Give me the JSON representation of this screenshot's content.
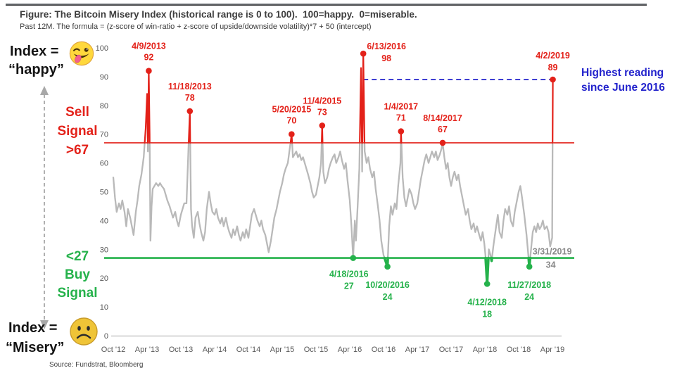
{
  "header": {
    "title": "Figure: The Bitcoin Misery Index (historical range is 0 to 100).  100=happy.  0=miserable.",
    "subtitle": "Past 12M. The formula = (z-score of win-ratio + z-score of upside/downside volatility)*7 + 50 (intercept)",
    "source": "Source: Fundstrat, Bloomberg"
  },
  "left_labels": {
    "happy_line1": "Index =",
    "happy_line2": "“happy”",
    "misery_line1": "Index =",
    "misery_line2": "“Misery”",
    "sell": [
      "Sell",
      "Signal",
      ">67"
    ],
    "buy": [
      "<27",
      "Buy",
      "Signal"
    ]
  },
  "callout": {
    "line1": "Highest reading",
    "line2": "since June 2016"
  },
  "icons": {
    "happy": "winking-tongue-emoji",
    "misery": "sad-face-emoji",
    "range": "double-headed-dashed-arrow"
  },
  "colors": {
    "sell_red": "#e32119",
    "buy_green": "#25b24b",
    "series_gray": "#b9b9b9",
    "callout_blue": "#2323cc",
    "current_gray": "#8a8a8a",
    "axis_gray": "#595959"
  },
  "chart_data": {
    "type": "line",
    "title": "The Bitcoin Misery Index",
    "ylim": [
      0,
      100
    ],
    "grid": false,
    "y_ticks": [
      0,
      10,
      20,
      30,
      40,
      50,
      60,
      70,
      80,
      90,
      100
    ],
    "x_ticks": [
      "Oct '12",
      "Apr '13",
      "Oct '13",
      "Apr '14",
      "Oct '14",
      "Apr '15",
      "Oct '15",
      "Apr '16",
      "Oct '16",
      "Apr '17",
      "Oct '17",
      "Apr '18",
      "Oct '18",
      "Apr '19"
    ],
    "sell_threshold": 67,
    "buy_threshold": 27,
    "reference_line": {
      "value": 89,
      "from_m": 44.4,
      "to_m": 78.07,
      "style": "dashed"
    },
    "series": [
      {
        "name": "Bitcoin Misery Index (months since Oct 2012, index value)",
        "points": [
          [
            0,
            55
          ],
          [
            0.3,
            48
          ],
          [
            0.6,
            43
          ],
          [
            1,
            46
          ],
          [
            1.3,
            44
          ],
          [
            1.6,
            47
          ],
          [
            2,
            43
          ],
          [
            2.3,
            38
          ],
          [
            2.6,
            44
          ],
          [
            3,
            41
          ],
          [
            3.3,
            38
          ],
          [
            3.6,
            35
          ],
          [
            4,
            43
          ],
          [
            4.3,
            47
          ],
          [
            4.6,
            52
          ],
          [
            5,
            56
          ],
          [
            5.4,
            62
          ],
          [
            5.75,
            72
          ],
          [
            6,
            84
          ],
          [
            6.15,
            64
          ],
          [
            6.3,
            92
          ],
          [
            6.45,
            70
          ],
          [
            6.6,
            33
          ],
          [
            6.8,
            45
          ],
          [
            7,
            51
          ],
          [
            7.3,
            52
          ],
          [
            7.6,
            53
          ],
          [
            8,
            52
          ],
          [
            8.3,
            53
          ],
          [
            8.6,
            52
          ],
          [
            9,
            51
          ],
          [
            9.3,
            49
          ],
          [
            9.6,
            47
          ],
          [
            10,
            45
          ],
          [
            10.3,
            43
          ],
          [
            10.6,
            41
          ],
          [
            11,
            43
          ],
          [
            11.3,
            40
          ],
          [
            11.6,
            38
          ],
          [
            12,
            42
          ],
          [
            12.3,
            44
          ],
          [
            12.6,
            46
          ],
          [
            13,
            46
          ],
          [
            13.6,
            78
          ],
          [
            13.8,
            44
          ],
          [
            14,
            38
          ],
          [
            14.3,
            34
          ],
          [
            14.6,
            41
          ],
          [
            15,
            43
          ],
          [
            15.3,
            39
          ],
          [
            15.6,
            36
          ],
          [
            16,
            33
          ],
          [
            16.3,
            36
          ],
          [
            16.6,
            44
          ],
          [
            17,
            50
          ],
          [
            17.3,
            46
          ],
          [
            17.6,
            43
          ],
          [
            18,
            42
          ],
          [
            18.3,
            44
          ],
          [
            18.6,
            41
          ],
          [
            19,
            39
          ],
          [
            19.3,
            41
          ],
          [
            19.6,
            38
          ],
          [
            20,
            41
          ],
          [
            20.3,
            38
          ],
          [
            20.6,
            36
          ],
          [
            21,
            34
          ],
          [
            21.3,
            37
          ],
          [
            21.6,
            35
          ],
          [
            22,
            38
          ],
          [
            22.3,
            35
          ],
          [
            22.6,
            33
          ],
          [
            23,
            36
          ],
          [
            23.3,
            34
          ],
          [
            23.6,
            37
          ],
          [
            24,
            34
          ],
          [
            24.3,
            38
          ],
          [
            24.6,
            42
          ],
          [
            25,
            44
          ],
          [
            25.3,
            42
          ],
          [
            25.6,
            40
          ],
          [
            26,
            38
          ],
          [
            26.3,
            40
          ],
          [
            26.6,
            37
          ],
          [
            27,
            35
          ],
          [
            27.3,
            32
          ],
          [
            27.6,
            29
          ],
          [
            28,
            33
          ],
          [
            28.3,
            37
          ],
          [
            28.6,
            41
          ],
          [
            29,
            44
          ],
          [
            29.3,
            47
          ],
          [
            29.6,
            50
          ],
          [
            30,
            53
          ],
          [
            30.3,
            56
          ],
          [
            30.6,
            58
          ],
          [
            31,
            60
          ],
          [
            31.67,
            70
          ],
          [
            31.9,
            62
          ],
          [
            32.2,
            63
          ],
          [
            32.5,
            64
          ],
          [
            32.8,
            62
          ],
          [
            33.1,
            63
          ],
          [
            33.4,
            61
          ],
          [
            33.7,
            62
          ],
          [
            34,
            60
          ],
          [
            34.3,
            58
          ],
          [
            34.6,
            56
          ],
          [
            35,
            53
          ],
          [
            35.3,
            50
          ],
          [
            35.6,
            48
          ],
          [
            36,
            49
          ],
          [
            36.3,
            52
          ],
          [
            36.6,
            55
          ],
          [
            36.9,
            60
          ],
          [
            37.1,
            73
          ],
          [
            37.3,
            57
          ],
          [
            37.6,
            53
          ],
          [
            38,
            55
          ],
          [
            38.3,
            58
          ],
          [
            38.6,
            60
          ],
          [
            39,
            62
          ],
          [
            39.3,
            63
          ],
          [
            39.6,
            60
          ],
          [
            40,
            62
          ],
          [
            40.3,
            64
          ],
          [
            40.6,
            61
          ],
          [
            41,
            58
          ],
          [
            41.3,
            60
          ],
          [
            41.6,
            54
          ],
          [
            42,
            47
          ],
          [
            42.3,
            38
          ],
          [
            42.6,
            27
          ],
          [
            42.9,
            40
          ],
          [
            43.1,
            33
          ],
          [
            43.4,
            45
          ],
          [
            43.7,
            58
          ],
          [
            44,
            93
          ],
          [
            44.2,
            57
          ],
          [
            44.4,
            98
          ],
          [
            44.65,
            64
          ],
          [
            45,
            60
          ],
          [
            45.3,
            62
          ],
          [
            45.6,
            58
          ],
          [
            46,
            55
          ],
          [
            46.3,
            57
          ],
          [
            46.6,
            51
          ],
          [
            47,
            45
          ],
          [
            47.3,
            40
          ],
          [
            47.6,
            33
          ],
          [
            48,
            28
          ],
          [
            48.7,
            24
          ],
          [
            49,
            38
          ],
          [
            49.3,
            45
          ],
          [
            49.6,
            42
          ],
          [
            50,
            46
          ],
          [
            50.3,
            44
          ],
          [
            50.6,
            52
          ],
          [
            51,
            60
          ],
          [
            51.1,
            71
          ],
          [
            51.4,
            55
          ],
          [
            51.7,
            48
          ],
          [
            52,
            45
          ],
          [
            52.3,
            48
          ],
          [
            52.6,
            51
          ],
          [
            53,
            49
          ],
          [
            53.3,
            46
          ],
          [
            53.6,
            44
          ],
          [
            54,
            46
          ],
          [
            54.3,
            50
          ],
          [
            54.6,
            54
          ],
          [
            55,
            58
          ],
          [
            55.3,
            61
          ],
          [
            55.6,
            63
          ],
          [
            56,
            60
          ],
          [
            56.3,
            62
          ],
          [
            56.6,
            64
          ],
          [
            57,
            62
          ],
          [
            57.3,
            64
          ],
          [
            57.6,
            61
          ],
          [
            58,
            63
          ],
          [
            58.3,
            65
          ],
          [
            58.5,
            67
          ],
          [
            58.8,
            62
          ],
          [
            59.1,
            58
          ],
          [
            59.4,
            60
          ],
          [
            59.7,
            55
          ],
          [
            60,
            52
          ],
          [
            60.3,
            55
          ],
          [
            60.6,
            57
          ],
          [
            61,
            54
          ],
          [
            61.3,
            56
          ],
          [
            61.6,
            52
          ],
          [
            62,
            48
          ],
          [
            62.3,
            45
          ],
          [
            62.6,
            42
          ],
          [
            63,
            44
          ],
          [
            63.3,
            40
          ],
          [
            63.6,
            37
          ],
          [
            64,
            39
          ],
          [
            64.3,
            36
          ],
          [
            64.6,
            38
          ],
          [
            65,
            35
          ],
          [
            65.3,
            33
          ],
          [
            65.6,
            36
          ],
          [
            65.9,
            32
          ],
          [
            66.1,
            28
          ],
          [
            66.4,
            18
          ],
          [
            66.7,
            30
          ],
          [
            67,
            28
          ],
          [
            67.2,
            26
          ],
          [
            67.5,
            31
          ],
          [
            68,
            38
          ],
          [
            68.3,
            42
          ],
          [
            68.6,
            36
          ],
          [
            69,
            34
          ],
          [
            69.3,
            40
          ],
          [
            69.6,
            44
          ],
          [
            70,
            42
          ],
          [
            70.3,
            45
          ],
          [
            70.6,
            40
          ],
          [
            71,
            38
          ],
          [
            71.3,
            43
          ],
          [
            71.6,
            46
          ],
          [
            72,
            50
          ],
          [
            72.3,
            52
          ],
          [
            72.6,
            48
          ],
          [
            73,
            42
          ],
          [
            73.4,
            35
          ],
          [
            73.9,
            24
          ],
          [
            74.2,
            30
          ],
          [
            74.5,
            36
          ],
          [
            74.8,
            38
          ],
          [
            75.1,
            36
          ],
          [
            75.4,
            39
          ],
          [
            75.7,
            37
          ],
          [
            76,
            38
          ],
          [
            76.3,
            40
          ],
          [
            76.6,
            37
          ],
          [
            77,
            38
          ],
          [
            77.3,
            36
          ],
          [
            77.6,
            31
          ],
          [
            77.95,
            34
          ],
          [
            78.07,
            89
          ]
        ]
      }
    ],
    "annotations": {
      "sell": [
        {
          "date": "4/9/2013",
          "value": 92,
          "m": 6.3
        },
        {
          "date": "11/18/2013",
          "value": 78,
          "m": 13.6
        },
        {
          "date": "5/20/2015",
          "value": 70,
          "m": 31.67
        },
        {
          "date": "11/4/2015",
          "value": 73,
          "m": 37.1
        },
        {
          "date": "6/13/2016",
          "value": 98,
          "m": 44.4,
          "dx": 33,
          "ddy": -6,
          "vdy": 11
        },
        {
          "date": "1/4/2017",
          "value": 71,
          "m": 51.1
        },
        {
          "date": "8/14/2017",
          "value": 67,
          "m": 58.5
        },
        {
          "date": "4/2/2019",
          "value": 89,
          "m": 78.07,
          "ddy": -30,
          "vdy": -13
        }
      ],
      "buy": [
        {
          "date": "4/18/2016",
          "value": 27,
          "m": 42.6,
          "dx": -6,
          "ddy": 27,
          "vdy": 44
        },
        {
          "date": "10/20/2016",
          "value": 24,
          "m": 48.7
        },
        {
          "date": "4/12/2018",
          "value": 18,
          "m": 66.4
        },
        {
          "date": "11/27/2018",
          "value": 24,
          "m": 73.9
        }
      ],
      "current": {
        "date": "3/31/2019",
        "value": 34,
        "m": 77.95
      }
    }
  }
}
